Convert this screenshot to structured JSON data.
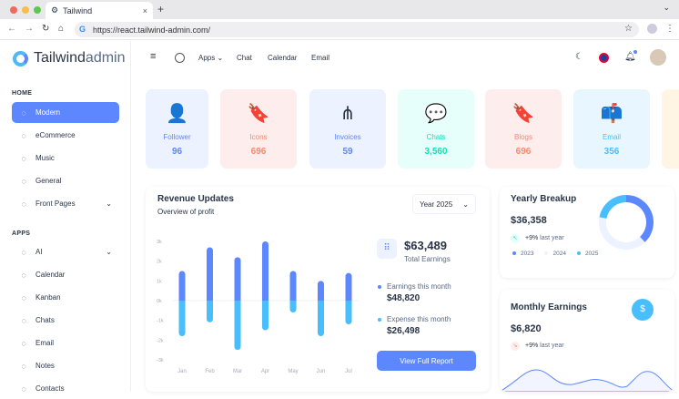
{
  "browser": {
    "tab_title": "Tailwind",
    "url": "https://react.tailwind-admin.com/"
  },
  "logo": {
    "brand": "Tailwind",
    "suffix": "admin"
  },
  "sidebar": {
    "sections": [
      {
        "title": "HOME",
        "items": [
          {
            "label": "Modern",
            "icon": "aperture-icon",
            "active": true
          },
          {
            "label": "eCommerce",
            "icon": "basket-icon"
          },
          {
            "label": "Music",
            "icon": "music-icon"
          },
          {
            "label": "General",
            "icon": "building-icon"
          },
          {
            "label": "Front Pages",
            "icon": "layout-icon",
            "chevron": true
          }
        ]
      },
      {
        "title": "APPS",
        "items": [
          {
            "label": "AI",
            "icon": "sparkle-icon",
            "chevron": true
          },
          {
            "label": "Calendar",
            "icon": "calendar-icon"
          },
          {
            "label": "Kanban",
            "icon": "kanban-icon"
          },
          {
            "label": "Chats",
            "icon": "chat-icon"
          },
          {
            "label": "Email",
            "icon": "mail-icon"
          },
          {
            "label": "Notes",
            "icon": "notes-icon"
          },
          {
            "label": "Contacts",
            "icon": "contacts-icon"
          }
        ]
      }
    ]
  },
  "header": {
    "apps": "Apps",
    "chat": "Chat",
    "calendar": "Calendar",
    "email": "Email"
  },
  "stats": [
    {
      "label": "Follower",
      "value": "96",
      "bg": "#ecf2ff",
      "color": "#5d87ff",
      "icon": "user-icon",
      "glyph": "👤"
    },
    {
      "label": "Icons",
      "value": "696",
      "bg": "#fdeded",
      "color": "#fa896b",
      "icon": "bookmark-star-icon",
      "glyph": "🔖"
    },
    {
      "label": "Invoices",
      "value": "59",
      "bg": "#ecf2ff",
      "color": "#5d87ff",
      "icon": "share-icon",
      "glyph": "⋔"
    },
    {
      "label": "Chats",
      "value": "3,560",
      "bg": "#e6fffa",
      "color": "#13deb9",
      "icon": "chat-bubbles-icon",
      "glyph": "💬"
    },
    {
      "label": "Blogs",
      "value": "696",
      "bg": "#fdeded",
      "color": "#fa896b",
      "icon": "bookmark-star-icon",
      "glyph": "🔖"
    },
    {
      "label": "Email",
      "value": "356",
      "bg": "#e8f7ff",
      "color": "#49beff",
      "icon": "mailbox-icon",
      "glyph": "📫"
    }
  ],
  "revenue": {
    "title": "Revenue Updates",
    "subtitle": "Overview of profit",
    "year_select": "Year 2025",
    "total": "$63,489",
    "total_label": "Total Earnings",
    "earnings_label": "Earnings this month",
    "earnings": "$48,820",
    "expense_label": "Expense this month",
    "expense": "$26,498",
    "button": "View Full Report"
  },
  "chart_data": {
    "type": "bar",
    "stacked": true,
    "categories": [
      "Jan",
      "Feb",
      "Mar",
      "Apr",
      "May",
      "Jun",
      "Jul"
    ],
    "series": [
      {
        "values": [
          1.5,
          2.7,
          2.2,
          3.0,
          1.5,
          1.0,
          1.4
        ],
        "color": "#5d87ff"
      },
      {
        "values": [
          -1.8,
          -1.1,
          -2.5,
          -1.5,
          -0.6,
          -1.8,
          -1.2
        ],
        "color": "#49beff"
      }
    ],
    "yticks": [
      "3k",
      "2k",
      "1k",
      "0k",
      "-1k",
      "-2k",
      "-3k"
    ],
    "ylim": [
      -3,
      3
    ]
  },
  "yearly": {
    "title": "Yearly Breakup",
    "value": "$36,358",
    "change": "+9%",
    "change_label": "last year",
    "legend": [
      {
        "label": "2023",
        "color": "#5d87ff"
      },
      {
        "label": "2024",
        "color": "#ecf2ff"
      },
      {
        "label": "2025",
        "color": "#49beff"
      }
    ],
    "donut": [
      38,
      40,
      22
    ]
  },
  "monthly": {
    "title": "Monthly Earnings",
    "value": "$6,820",
    "change": "+9%",
    "change_label": "last year"
  }
}
